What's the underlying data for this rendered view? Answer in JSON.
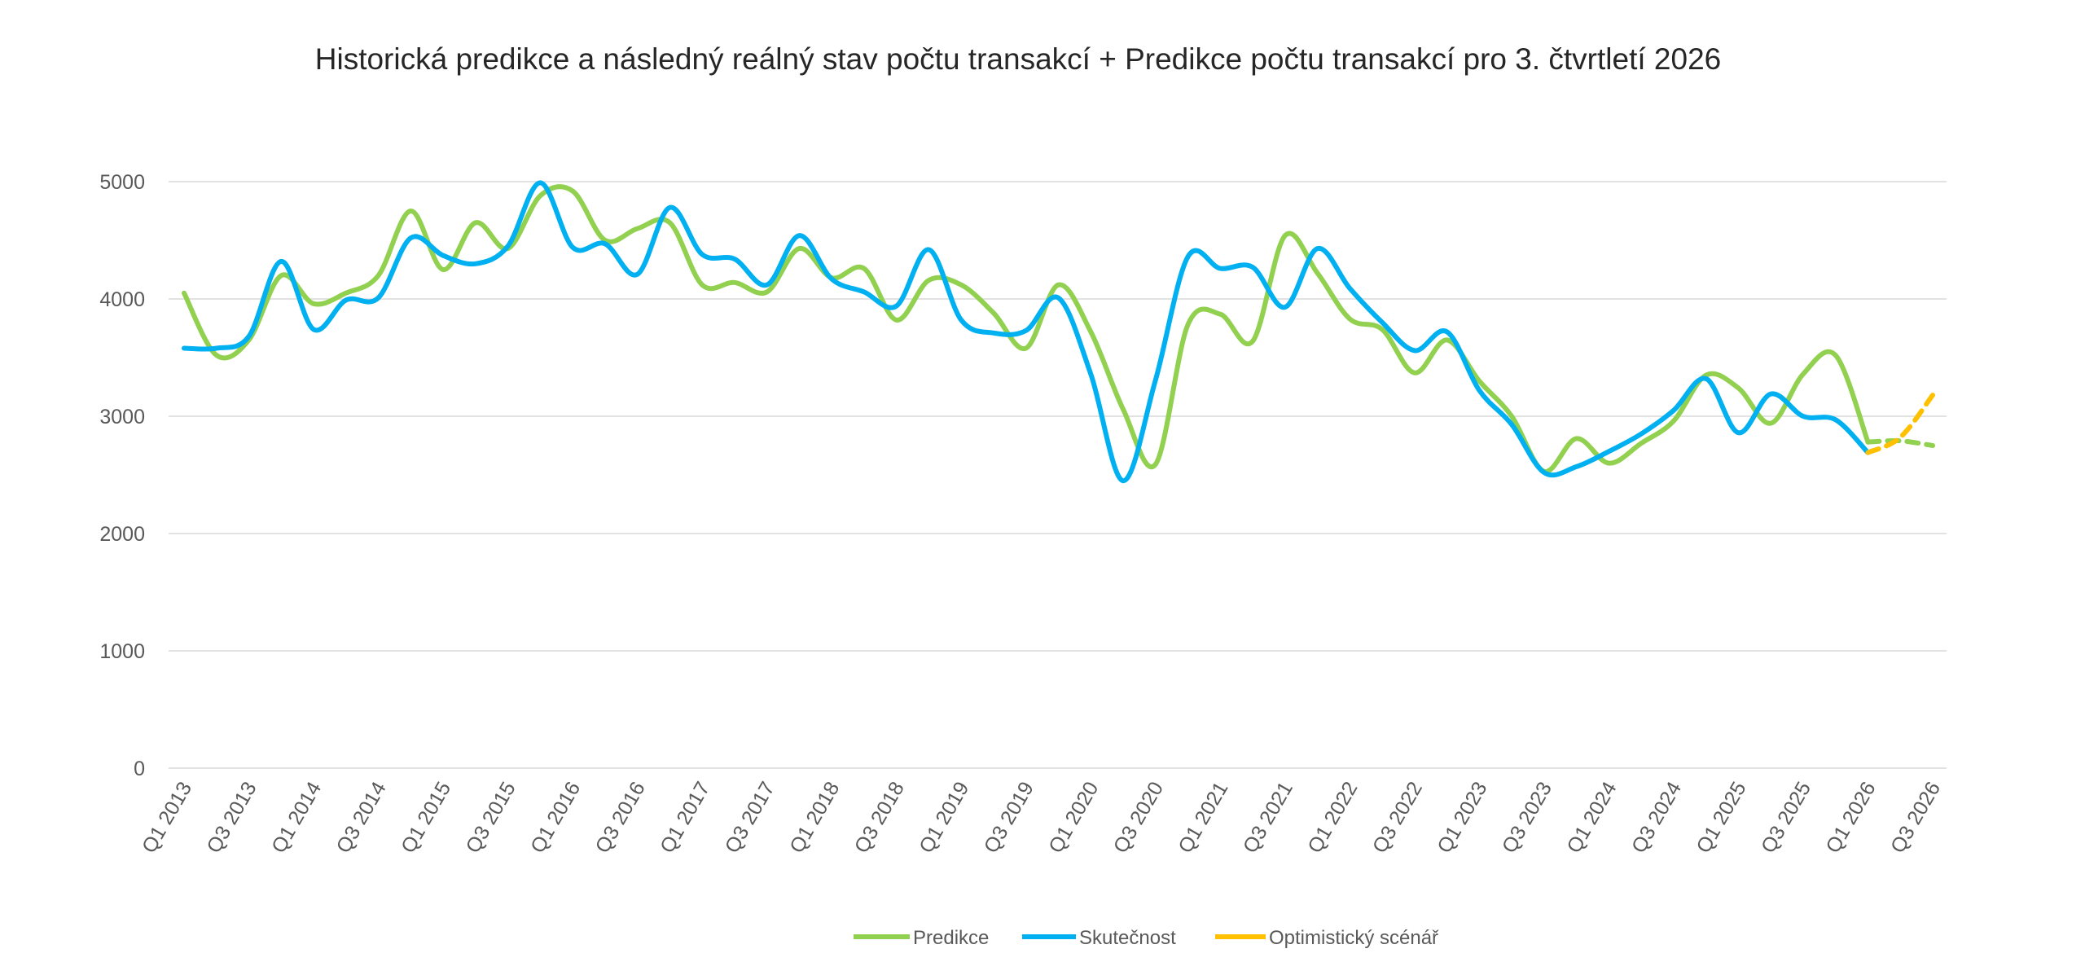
{
  "chart_data": {
    "type": "line",
    "title": "Historická predikce a následný reálný stav počtu transakcí + Predikce počtu transakcí pro 3. čtvrtletí 2026",
    "xlabel": "",
    "ylabel": "",
    "ylim": [
      0,
      5000
    ],
    "yticks": [
      0,
      1000,
      2000,
      3000,
      4000,
      5000
    ],
    "grid": true,
    "legend_position": "bottom",
    "categories": [
      "Q1 2013",
      "Q2 2013",
      "Q3 2013",
      "Q4 2013",
      "Q1 2014",
      "Q2 2014",
      "Q3 2014",
      "Q4 2014",
      "Q1 2015",
      "Q2 2015",
      "Q3 2015",
      "Q4 2015",
      "Q1 2016",
      "Q2 2016",
      "Q3 2016",
      "Q4 2016",
      "Q1 2017",
      "Q2 2017",
      "Q3 2017",
      "Q4 2017",
      "Q1 2018",
      "Q2 2018",
      "Q3 2018",
      "Q4 2018",
      "Q1 2019",
      "Q2 2019",
      "Q3 2019",
      "Q4 2019",
      "Q1 2020",
      "Q2 2020",
      "Q3 2020",
      "Q4 2020",
      "Q1 2021",
      "Q2 2021",
      "Q3 2021",
      "Q4 2021",
      "Q1 2022",
      "Q2 2022",
      "Q3 2022",
      "Q4 2022",
      "Q1 2023",
      "Q2 2023",
      "Q3 2023",
      "Q4 2023",
      "Q1 2024",
      "Q2 2024",
      "Q3 2024",
      "Q4 2024",
      "Q1 2025",
      "Q2 2025",
      "Q3 2025",
      "Q4 2025",
      "Q1 2026",
      "Q2 2026",
      "Q3 2026"
    ],
    "tick_labels": [
      "Q1 2013",
      "Q3 2013",
      "Q1 2014",
      "Q3 2014",
      "Q1 2015",
      "Q3 2015",
      "Q1 2016",
      "Q3 2016",
      "Q1 2017",
      "Q3 2017",
      "Q1 2018",
      "Q3 2018",
      "Q1 2019",
      "Q3 2019",
      "Q1 2020",
      "Q3 2020",
      "Q1 2021",
      "Q3 2021",
      "Q1 2022",
      "Q3 2022",
      "Q1 2023",
      "Q3 2023",
      "Q1 2024",
      "Q3 2024",
      "Q1 2025",
      "Q3 2025",
      "Q1 2026",
      "Q3 2026"
    ],
    "series": [
      {
        "name": "Predikce",
        "color": "#92D050",
        "values": [
          4050,
          3520,
          3650,
          4200,
          3960,
          4050,
          4200,
          4750,
          4250,
          4650,
          4430,
          4880,
          4920,
          4500,
          4600,
          4650,
          4120,
          4140,
          4060,
          4430,
          4180,
          4260,
          3820,
          4160,
          4120,
          3880,
          3580,
          4120,
          3720,
          3060,
          2590,
          3780,
          3870,
          3640,
          4540,
          4220,
          3830,
          3740,
          3370,
          3650,
          3300,
          3000,
          2530,
          2810,
          2600,
          2770,
          2960,
          3350,
          3240,
          2940,
          3360,
          3520,
          2780,
          null,
          null
        ]
      },
      {
        "name": "Skutečnost",
        "color": "#00B0F0",
        "values": [
          3580,
          3580,
          3680,
          4320,
          3740,
          3990,
          4010,
          4520,
          4370,
          4300,
          4450,
          4990,
          4440,
          4470,
          4210,
          4780,
          4380,
          4340,
          4120,
          4540,
          4170,
          4060,
          3940,
          4420,
          3820,
          3710,
          3730,
          4010,
          3360,
          2450,
          3310,
          4360,
          4260,
          4270,
          3930,
          4430,
          4090,
          3800,
          3560,
          3720,
          3220,
          2930,
          2520,
          2570,
          2700,
          2850,
          3050,
          3320,
          2860,
          3190,
          3000,
          2970,
          2690,
          null,
          null
        ]
      },
      {
        "name": "Optimistický scénář",
        "color": "#FFC000",
        "values": [
          null,
          null,
          null,
          null,
          null,
          null,
          null,
          null,
          null,
          null,
          null,
          null,
          null,
          null,
          null,
          null,
          null,
          null,
          null,
          null,
          null,
          null,
          null,
          null,
          null,
          null,
          null,
          null,
          null,
          null,
          null,
          null,
          null,
          null,
          null,
          null,
          null,
          null,
          null,
          null,
          null,
          null,
          null,
          null,
          null,
          null,
          null,
          null,
          null,
          null,
          null,
          null,
          null,
          2820,
          3180
        ]
      }
    ],
    "predikce_forecast": {
      "color": "#92D050",
      "values_from_index": 52,
      "values": [
        2780,
        2790,
        2750
      ]
    }
  },
  "legend": {
    "items": [
      {
        "label": "Predikce",
        "color": "#92D050"
      },
      {
        "label": "Skutečnost",
        "color": "#00B0F0"
      },
      {
        "label": "Optimistický scénář",
        "color": "#FFC000"
      }
    ]
  }
}
